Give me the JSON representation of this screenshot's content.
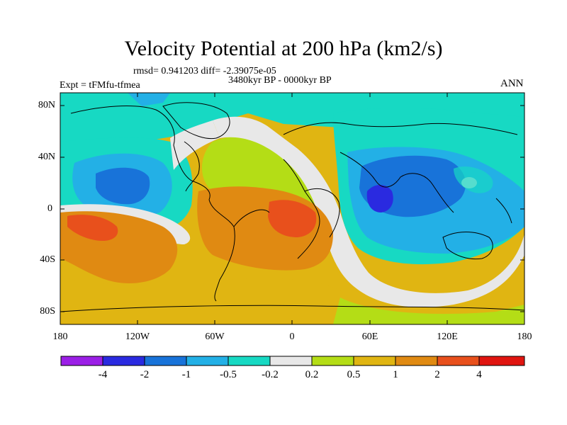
{
  "figure": {
    "title": "Velocity Potential at 200 hPa (km2/s)",
    "stats": "rmsd= 0.941203 diff= -2.39075e-05",
    "period": "3480kyr BP - 0000kyr BP",
    "experiment": "Expt = tFMfu-tfmea",
    "season": "ANN"
  },
  "axes": {
    "y_labels": [
      "80N",
      "40N",
      "0",
      "40S",
      "80S"
    ],
    "x_labels": [
      "180",
      "120W",
      "60W",
      "0",
      "60E",
      "120E",
      "180"
    ]
  },
  "colorbar": {
    "labels": [
      "-4",
      "-2",
      "-1",
      "-0.5",
      "-0.2",
      "0.2",
      "0.5",
      "1",
      "2",
      "4"
    ],
    "colors": [
      "#9b1fe6",
      "#2a2ae0",
      "#1873d9",
      "#23b0e6",
      "#17d9c3",
      "#e8e8e8",
      "#b4dd16",
      "#e0b512",
      "#e08a12",
      "#e8501c",
      "#e01510"
    ]
  }
}
